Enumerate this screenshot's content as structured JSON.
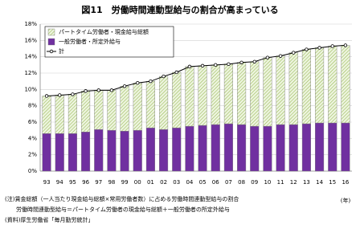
{
  "chart_data": {
    "type": "stacked_bar_line",
    "title": "図11　労働時間連動型給与の割合が高まっている",
    "categories": [
      "93",
      "94",
      "95",
      "96",
      "97",
      "98",
      "99",
      "00",
      "01",
      "02",
      "03",
      "04",
      "05",
      "06",
      "07",
      "08",
      "09",
      "10",
      "11",
      "12",
      "13",
      "14",
      "15",
      "16"
    ],
    "series": [
      {
        "name": "一般労働者・所定外給与",
        "color": "#7030a0",
        "kind": "bar",
        "values": [
          4.6,
          4.6,
          4.6,
          4.8,
          5.1,
          5.0,
          4.9,
          5.0,
          5.3,
          5.1,
          5.3,
          5.5,
          5.6,
          5.7,
          5.8,
          5.7,
          5.5,
          5.5,
          5.7,
          5.7,
          5.8,
          5.9,
          5.9,
          5.9
        ]
      },
      {
        "name": "パートタイム労働者・現金給与総額",
        "color": "#9bbb59",
        "kind": "bar",
        "values": [
          4.6,
          4.7,
          4.8,
          5.0,
          4.8,
          4.9,
          5.5,
          5.8,
          5.7,
          6.5,
          6.8,
          7.3,
          7.3,
          7.3,
          7.3,
          7.6,
          7.9,
          8.4,
          8.4,
          8.8,
          9.1,
          9.2,
          9.4,
          9.5
        ]
      },
      {
        "name": "計",
        "color": "#000000",
        "kind": "line",
        "values": [
          9.2,
          9.3,
          9.4,
          9.8,
          9.9,
          9.9,
          10.4,
          10.8,
          11.0,
          11.6,
          12.1,
          12.8,
          12.9,
          13.0,
          13.1,
          13.3,
          13.4,
          13.9,
          14.1,
          14.5,
          14.9,
          15.1,
          15.3,
          15.4
        ]
      }
    ],
    "ylim": [
      0,
      18
    ],
    "yticks": [
      {
        "value": 0,
        "label": "0%"
      },
      {
        "value": 2,
        "label": "2%"
      },
      {
        "value": 4,
        "label": "4%"
      },
      {
        "value": 6,
        "label": "6%"
      },
      {
        "value": 8,
        "label": "8%"
      },
      {
        "value": 10,
        "label": "10%"
      },
      {
        "value": 12,
        "label": "12%"
      },
      {
        "value": 14,
        "label": "14%"
      },
      {
        "value": 16,
        "label": "16%"
      },
      {
        "value": 18,
        "label": "18%"
      }
    ],
    "x_unit": "(年)",
    "notes": [
      "(注)賃金総額（一人当たり現金給与総額×常用労働者数）に占める労働時間連動型給与の割合",
      "　　労働時間連動型給与＝パートタイム労働者の現金給与総額＋一般労働者の所定外給与",
      "(資料)厚生労働省「毎月勤労統計」"
    ]
  }
}
